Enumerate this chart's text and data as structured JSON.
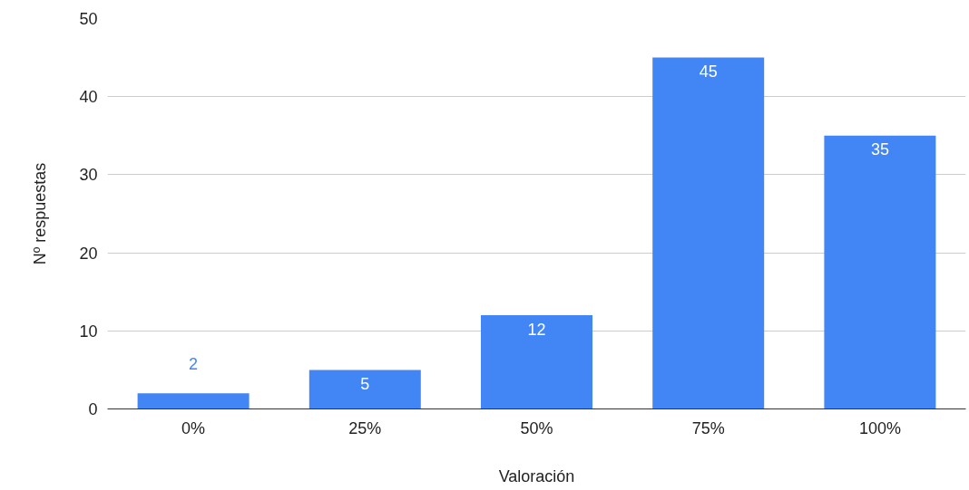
{
  "chart_data": {
    "type": "bar",
    "xlabel": "Valoración",
    "ylabel": "Nº respuestas",
    "categories": [
      "0%",
      "25%",
      "50%",
      "75%",
      "100%"
    ],
    "values": [
      2,
      5,
      12,
      45,
      35
    ],
    "color": "#4285f4",
    "ylim": [
      0,
      50
    ],
    "yticks": [
      0,
      10,
      20,
      30,
      40,
      50
    ],
    "grid": "y",
    "data_labels": true
  }
}
